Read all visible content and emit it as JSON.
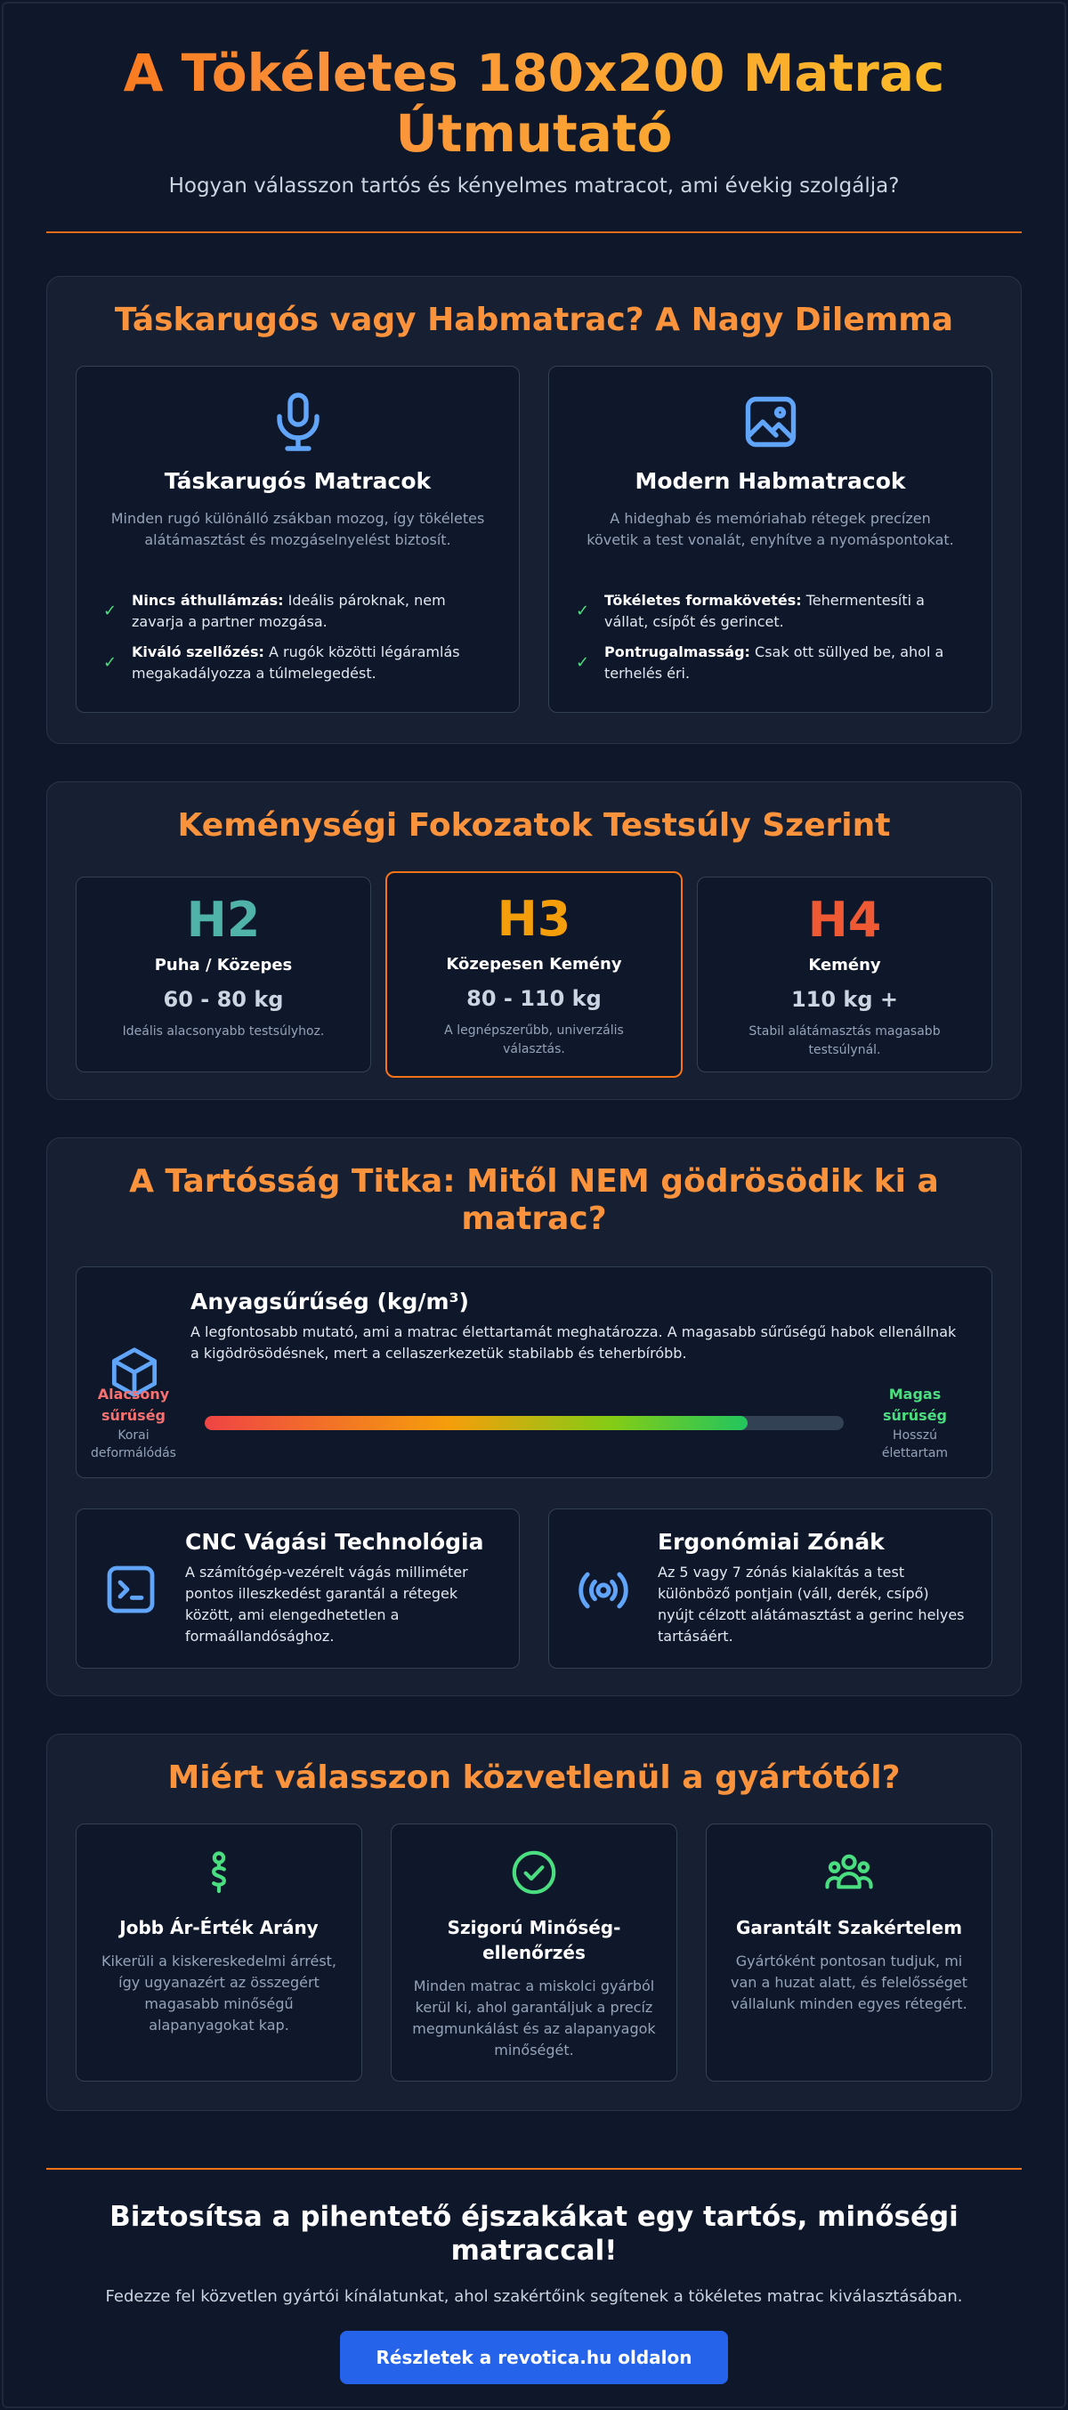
{
  "header": {
    "title": "A Tökéletes 180x200 Matrac Útmutató",
    "subtitle": "Hogyan válasszon tartós és kényelmes matracot, ami évekig szolgálja?"
  },
  "colors": {
    "accent": "#f97316",
    "button": "#2563eb",
    "check": "#4ade80",
    "icon": "#60a5fa"
  },
  "section1": {
    "title": "Táskarugós vagy Habmatrac? A Nagy Dilemma",
    "cards": [
      {
        "icon": "microphone-icon",
        "title": "Táskarugós Matracok",
        "desc": "Minden rugó különálló zsákban mozog, így tökéletes alátámasztást és mozgáselnyelést biztosít.",
        "items": [
          {
            "bold": "Nincs áthullámzás:",
            "text": "Ideális pároknak, nem zavarja a partner mozgása."
          },
          {
            "bold": "Kiváló szellőzés:",
            "text": "A rugók közötti légáramlás megakadályozza a túlmelegedést."
          }
        ]
      },
      {
        "icon": "image-icon",
        "title": "Modern Habmatracok",
        "desc": "A hideghab és memóriahab rétegek precízen követik a test vonalát, enyhítve a nyomáspontokat.",
        "items": [
          {
            "bold": "Tökéletes formakövetés:",
            "text": "Tehermentesíti a vállat, csípőt és gerincet."
          },
          {
            "bold": "Pontrugalmasság:",
            "text": "Csak ott süllyed be, ahol a terhelés éri."
          }
        ]
      }
    ]
  },
  "section2": {
    "title": "Keménységi Fokozatok Testsúly Szerint",
    "cards": [
      {
        "code": "H2",
        "color": "#4fb3a9",
        "label": "Puha / Közepes",
        "range": "60 - 80 kg",
        "note": "Ideális alacsonyabb testsúlyhoz."
      },
      {
        "code": "H3",
        "color": "#f59e0b",
        "label": "Közepesen Kemény",
        "range": "80 - 110 kg",
        "note": "A legnépszerűbb, univerzális választás."
      },
      {
        "code": "H4",
        "color": "#ef5a35",
        "label": "Kemény",
        "range": "110 kg +",
        "note": "Stabil alátámasztás magasabb testsúlynál."
      }
    ]
  },
  "section3": {
    "title": "A Tartósság Titka: Mitől NEM gödrösödik ki a matrac?",
    "density": {
      "icon": "cube-icon",
      "title": "Anyagsűrűség (kg/m³)",
      "text": "A legfontosabb mutató, ami a matrac élettartamát meghatározza. A magasabb sűrűségű habok ellenállnak a kigödrösödésnek, mert a cellaszerkezetük stabilabb és teherbíróbb.",
      "low_label": "Alacsony sűrűség",
      "low_sub": "Korai deformálódás",
      "high_label": "Magas sűrűség",
      "high_sub": "Hosszú élettartam",
      "level": 0.85
    },
    "cards": [
      {
        "icon": "terminal-icon",
        "title": "CNC Vágási Technológia",
        "text": "A számítógép-vezérelt vágás milliméter pontos illeszkedést garantál a rétegek között, ami elengedhetetlen a formaállandósághoz."
      },
      {
        "icon": "broadcast-icon",
        "title": "Ergonómiai Zónák",
        "text": "Az 5 vagy 7 zónás kialakítás a test különböző pontjain (váll, derék, csípő) nyújt célzott alátámasztást a gerinc helyes tartásáért."
      }
    ]
  },
  "section4": {
    "title": "Miért válasszon közvetlenül a gyártótól?",
    "cards": [
      {
        "icon": "currency-icon",
        "title": "Jobb Ár-Érték Arány",
        "text": "Kikerüli a kiskereskedelmi árrést, így ugyanazért az összegért magasabb minőségű alapanyagokat kap."
      },
      {
        "icon": "check-circle-icon",
        "title": "Szigorú Minőség-ellenőrzés",
        "text": "Minden matrac a miskolci gyárból kerül ki, ahol garantáljuk a precíz megmunkálást és az alapanyagok minőségét."
      },
      {
        "icon": "users-icon",
        "title": "Garantált Szakértelem",
        "text": "Gyártóként pontosan tudjuk, mi van a huzat alatt, és felelősséget vállalunk minden egyes rétegért."
      }
    ]
  },
  "footer": {
    "title": "Biztosítsa a pihentető éjszakákat egy tartós, minőségi matraccal!",
    "text": "Fedezze fel közvetlen gyártói kínálatunkat, ahol szakértőink segítenek a tökéletes matrac kiválasztásában.",
    "button": "Részletek a revotica.hu oldalon"
  }
}
